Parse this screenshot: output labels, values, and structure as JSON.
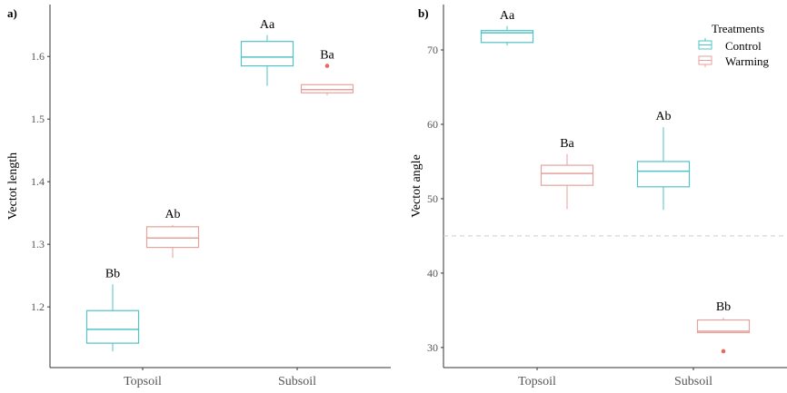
{
  "colors": {
    "control": "#52c3c6",
    "warming": "#e6a29c",
    "outlier": "#e8695e",
    "axis": "#333333",
    "tick_text": "#555555",
    "ref_line": "#cccccc"
  },
  "legend": {
    "title": "Treatments",
    "items": [
      "Control",
      "Warming"
    ],
    "placement": "top-right of panel b"
  },
  "chart_data": [
    {
      "type": "box",
      "panel_label": "a)",
      "ylabel": "Vectot length",
      "xlabel": "",
      "categories": [
        "Topsoil",
        "Subsoil"
      ],
      "ylim": [
        1.103,
        1.683
      ],
      "yticks": [
        1.2,
        1.3,
        1.4,
        1.5,
        1.6
      ],
      "ytick_labels": [
        "1.2",
        "1.3",
        "1.4",
        "1.5",
        "1.6"
      ],
      "series": [
        {
          "name": "Control",
          "boxes": [
            {
              "category": "Topsoil",
              "min": 1.129,
              "q1": 1.142,
              "median": 1.164,
              "q3": 1.194,
              "max": 1.236,
              "outliers": [],
              "label": "Bb"
            },
            {
              "category": "Subsoil",
              "min": 1.553,
              "q1": 1.585,
              "median": 1.599,
              "q3": 1.624,
              "max": 1.634,
              "outliers": [],
              "label": "Aa"
            }
          ]
        },
        {
          "name": "Warming",
          "boxes": [
            {
              "category": "Topsoil",
              "min": 1.278,
              "q1": 1.295,
              "median": 1.31,
              "q3": 1.328,
              "max": 1.331,
              "outliers": [],
              "label": "Ab"
            },
            {
              "category": "Subsoil",
              "min": 1.538,
              "q1": 1.542,
              "median": 1.547,
              "q3": 1.555,
              "max": 1.556,
              "outliers": [
                1.585
              ],
              "label": "Ba"
            }
          ]
        }
      ]
    },
    {
      "type": "box",
      "panel_label": "b)",
      "ylabel": "Vectot angle",
      "xlabel": "",
      "categories": [
        "Topsoil",
        "Subsoil"
      ],
      "ylim": [
        27.3,
        76.1
      ],
      "yticks": [
        30,
        40,
        50,
        60,
        70
      ],
      "ytick_labels": [
        "30",
        "40",
        "50",
        "60",
        "70"
      ],
      "reference_line": 45,
      "series": [
        {
          "name": "Control",
          "boxes": [
            {
              "category": "Topsoil",
              "min": 70.6,
              "q1": 71.0,
              "median": 72.3,
              "q3": 72.6,
              "max": 73.2,
              "outliers": [],
              "label": "Aa"
            },
            {
              "category": "Subsoil",
              "min": 48.5,
              "q1": 51.6,
              "median": 53.7,
              "q3": 55.0,
              "max": 59.6,
              "outliers": [],
              "label": "Ab"
            }
          ]
        },
        {
          "name": "Warming",
          "boxes": [
            {
              "category": "Topsoil",
              "min": 48.6,
              "q1": 51.8,
              "median": 53.4,
              "q3": 54.5,
              "max": 56.0,
              "outliers": [],
              "label": "Ba"
            },
            {
              "category": "Subsoil",
              "min": 32.0,
              "q1": 32.0,
              "median": 32.2,
              "q3": 33.7,
              "max": 34.0,
              "outliers": [
                29.5
              ],
              "label": "Bb"
            }
          ]
        }
      ]
    }
  ]
}
